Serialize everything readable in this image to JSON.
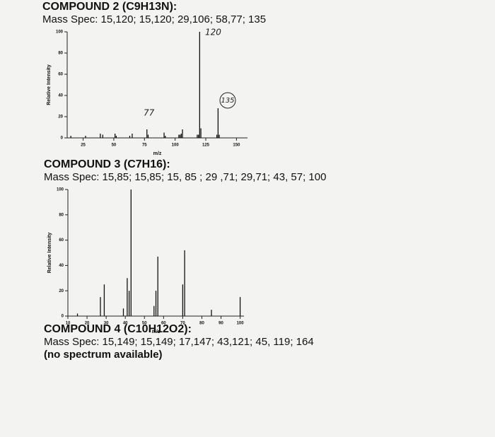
{
  "compounds": [
    {
      "title": "COMPOUND 2 (C9H13N):",
      "mass_spec": "Mass Spec: 15,120; 15,120; 29,106; 58,77; 135",
      "spectrum": {
        "type": "bar",
        "x_label": "m/z",
        "y_label": "Relative Intensity",
        "x": [
          15,
          27,
          39,
          41,
          51,
          52,
          63,
          65,
          77,
          78,
          91,
          92,
          103,
          104,
          105,
          106,
          118,
          119,
          120,
          121,
          134,
          135,
          136
        ],
        "values": [
          2,
          2,
          4,
          3,
          4,
          2,
          2,
          4,
          8,
          3,
          5,
          2,
          3,
          3,
          4,
          8,
          3,
          3,
          100,
          9,
          3,
          28,
          3
        ],
        "xlim": [
          12,
          159
        ],
        "xticks": [
          25,
          50,
          75,
          100,
          125,
          150
        ],
        "ylim": [
          0,
          100
        ],
        "yticks": [
          0,
          20,
          40,
          60,
          80,
          100
        ],
        "annotations": [
          "120",
          "135",
          "77"
        ]
      }
    },
    {
      "title": "COMPOUND 3 (C7H16):",
      "mass_spec": "Mass Spec: 15,85; 15,85; 15, 85 ; 29 ,71; 29,71; 43, 57; 100",
      "spectrum": {
        "type": "bar",
        "x_label": "m/z",
        "y_label": "Relative Intensity",
        "x": [
          15,
          27,
          29,
          39,
          41,
          42,
          43,
          55,
          56,
          57,
          70,
          71,
          85,
          100
        ],
        "values": [
          2,
          15,
          25,
          6,
          30,
          20,
          100,
          8,
          20,
          47,
          25,
          52,
          5,
          15
        ],
        "xlim": [
          10,
          102
        ],
        "xticks": [
          10,
          20,
          30,
          40,
          50,
          60,
          70,
          80,
          90,
          100
        ],
        "ylim": [
          0,
          100
        ],
        "yticks": [
          0,
          20,
          40,
          60,
          80,
          100
        ]
      }
    },
    {
      "title": "COMPOUND 4 (C10H12O2):",
      "mass_spec": "Mass Spec: 15,149; 15,149; 17,147; 43,121; 45, 119; 164",
      "note": "(no spectrum available)"
    }
  ]
}
